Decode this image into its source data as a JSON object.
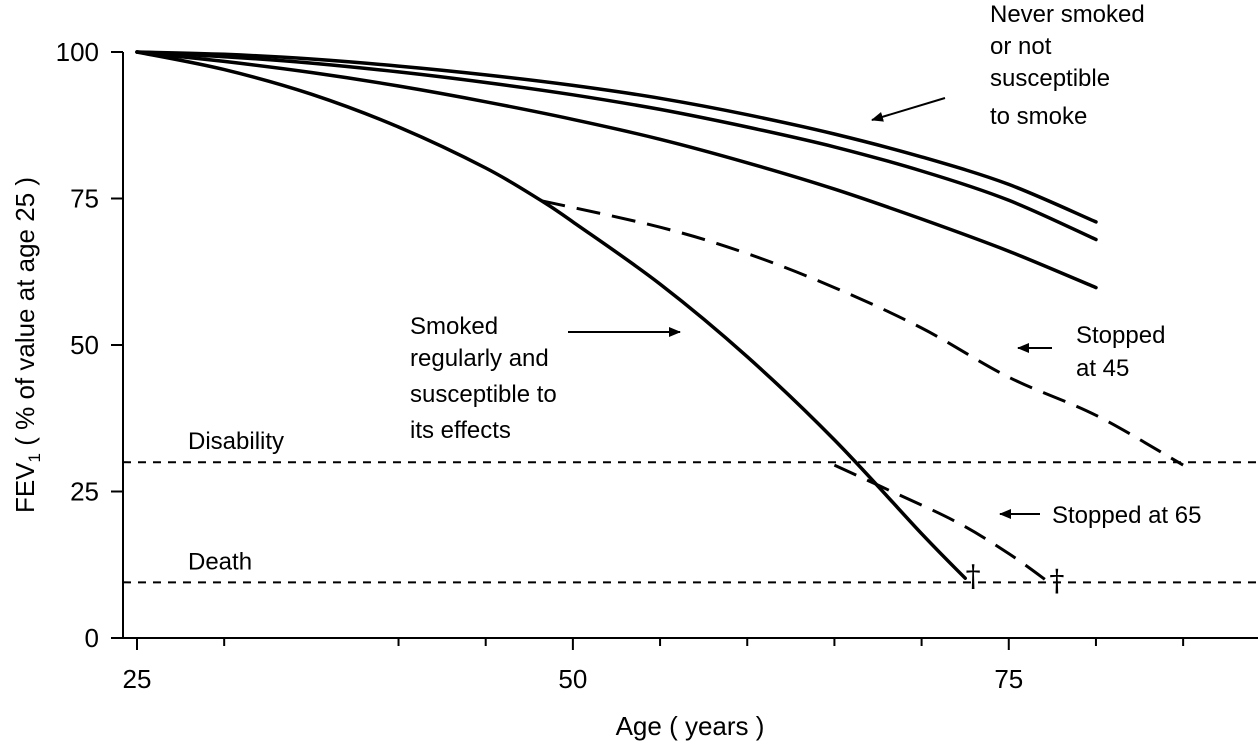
{
  "chart_data": {
    "type": "line",
    "xlabel": "Age ( years )",
    "ylabel_main": "FEV",
    "ylabel_sub": "1",
    "ylabel_rest": " ( % of value at age 25 )",
    "xlim": [
      25,
      87
    ],
    "ylim": [
      0,
      100
    ],
    "x_ticks": [
      25,
      50,
      75
    ],
    "y_ticks": [
      0,
      25,
      50,
      75,
      100
    ],
    "x_minor_ticks": [
      30,
      40,
      45,
      55,
      60,
      65,
      70,
      80,
      85
    ],
    "series": [
      {
        "style": "solid",
        "x": [
          25,
          30,
          35,
          40,
          45,
          50,
          55,
          60,
          65,
          70,
          75,
          80
        ],
        "y": [
          100,
          99.6,
          98.8,
          97.6,
          96.1,
          94.3,
          92.1,
          89.3,
          86.0,
          82.1,
          77.4,
          71.0
        ]
      },
      {
        "style": "solid",
        "x": [
          25,
          30,
          35,
          40,
          45,
          50,
          55,
          60,
          65,
          70,
          75,
          80
        ],
        "y": [
          100,
          99.2,
          98.1,
          96.6,
          94.8,
          92.7,
          90.2,
          87.2,
          83.8,
          79.7,
          74.7,
          68.0
        ]
      },
      {
        "style": "solid",
        "x": [
          25,
          30,
          35,
          40,
          45,
          50,
          55,
          60,
          65,
          70,
          75,
          80
        ],
        "y": [
          100,
          98.4,
          96.5,
          94.2,
          91.5,
          88.5,
          85.1,
          81.1,
          76.6,
          71.5,
          66.0,
          59.8
        ]
      },
      {
        "style": "solid",
        "x": [
          25,
          30,
          35,
          40,
          45,
          48.2,
          50,
          55,
          60,
          65,
          70,
          72.5
        ],
        "y": [
          100,
          97.0,
          92.8,
          87.2,
          80.2,
          74.6,
          71.0,
          60.4,
          48.0,
          33.8,
          17.8,
          10.2
        ]
      },
      {
        "style": "dashed",
        "x": [
          48.2,
          55,
          60,
          65,
          70,
          75,
          80,
          85
        ],
        "y": [
          74.6,
          70.1,
          65.6,
          59.8,
          52.9,
          44.5,
          38.0,
          29.5
        ]
      },
      {
        "style": "dashed",
        "x": [
          65,
          68,
          72,
          75,
          77.3
        ],
        "y": [
          29.5,
          25.4,
          19.8,
          14.4,
          9.5
        ]
      }
    ],
    "threshold_lines": [
      {
        "label": "Disability",
        "y": 30
      },
      {
        "label": "Death",
        "y": 9.5
      }
    ],
    "death_markers": [
      {
        "x": 72.5,
        "y": 10.2,
        "symbol": "†"
      },
      {
        "x": 77.3,
        "y": 9.5,
        "symbol": "†"
      }
    ],
    "annotations": [
      {
        "lines": [
          "Never smoked",
          "or not",
          "susceptible",
          "to smoke"
        ]
      },
      {
        "lines": [
          "Smoked",
          "regularly and",
          "susceptible to",
          "its effects"
        ]
      },
      {
        "lines": [
          "Stopped",
          "at 45"
        ]
      },
      {
        "lines": [
          "Stopped at 65"
        ]
      }
    ]
  }
}
